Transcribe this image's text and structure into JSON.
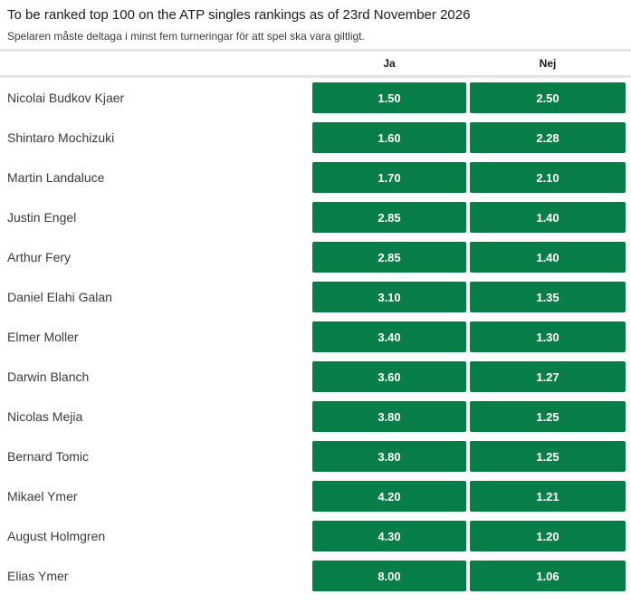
{
  "header": {
    "title": "To be ranked top 100 on the ATP singles rankings as of 23rd November 2026",
    "subtitle": "Spelaren måste deltaga i minst fem turneringar för att spel ska vara giltligt."
  },
  "columns": {
    "yes_label": "Ja",
    "no_label": "Nej"
  },
  "colors": {
    "odds_button_green": "#077e47",
    "odds_text": "#ffffff",
    "divider_gray": "#e5e5e5"
  },
  "rows": [
    {
      "player": "Nicolai Budkov Kjaer",
      "yes": "1.50",
      "no": "2.50"
    },
    {
      "player": "Shintaro Mochizuki",
      "yes": "1.60",
      "no": "2.28"
    },
    {
      "player": "Martin Landaluce",
      "yes": "1.70",
      "no": "2.10"
    },
    {
      "player": "Justin Engel",
      "yes": "2.85",
      "no": "1.40"
    },
    {
      "player": "Arthur Fery",
      "yes": "2.85",
      "no": "1.40"
    },
    {
      "player": "Daniel Elahi Galan",
      "yes": "3.10",
      "no": "1.35"
    },
    {
      "player": "Elmer Moller",
      "yes": "3.40",
      "no": "1.30"
    },
    {
      "player": "Darwin Blanch",
      "yes": "3.60",
      "no": "1.27"
    },
    {
      "player": "Nicolas Mejia",
      "yes": "3.80",
      "no": "1.25"
    },
    {
      "player": "Bernard Tomic",
      "yes": "3.80",
      "no": "1.25"
    },
    {
      "player": "Mikael Ymer",
      "yes": "4.20",
      "no": "1.21"
    },
    {
      "player": "August Holmgren",
      "yes": "4.30",
      "no": "1.20"
    },
    {
      "player": "Elias Ymer",
      "yes": "8.00",
      "no": "1.06"
    }
  ]
}
